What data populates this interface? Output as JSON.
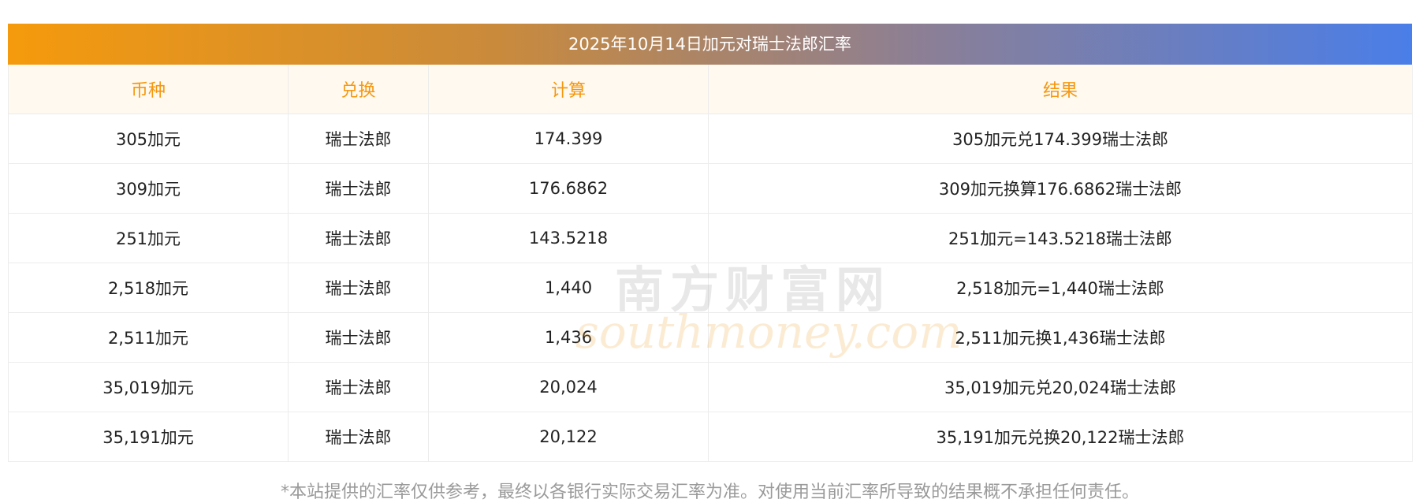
{
  "title": "2025年10月14日加元对瑞士法郎汇率",
  "headers": [
    "币种",
    "兑换",
    "计算",
    "结果"
  ],
  "rows": [
    {
      "currency": "305加元",
      "target": "瑞士法郎",
      "calc": "174.399",
      "result": "305加元兑174.399瑞士法郎"
    },
    {
      "currency": "309加元",
      "target": "瑞士法郎",
      "calc": "176.6862",
      "result": "309加元换算176.6862瑞士法郎"
    },
    {
      "currency": "251加元",
      "target": "瑞士法郎",
      "calc": "143.5218",
      "result": "251加元=143.5218瑞士法郎"
    },
    {
      "currency": "2,518加元",
      "target": "瑞士法郎",
      "calc": "1,440",
      "result": "2,518加元=1,440瑞士法郎"
    },
    {
      "currency": "2,511加元",
      "target": "瑞士法郎",
      "calc": "1,436",
      "result": "2,511加元换1,436瑞士法郎"
    },
    {
      "currency": "35,019加元",
      "target": "瑞士法郎",
      "calc": "20,024",
      "result": "35,019加元兑20,024瑞士法郎"
    },
    {
      "currency": "35,191加元",
      "target": "瑞士法郎",
      "calc": "20,122",
      "result": "35,191加元兑换20,122瑞士法郎"
    }
  ],
  "watermark": {
    "cn": "南方财富网",
    "en": "southmoney.com"
  },
  "disclaimer": "*本站提供的汇率仅供参考，最终以各银行实际交易汇率为准。对使用当前汇率所导致的结果概不承担任何责任。",
  "colors": {
    "header_text": "#f5970f",
    "header_bg": "#fff9ef",
    "gradient_start": "#f59a0c",
    "gradient_end": "#4a7ee8"
  }
}
